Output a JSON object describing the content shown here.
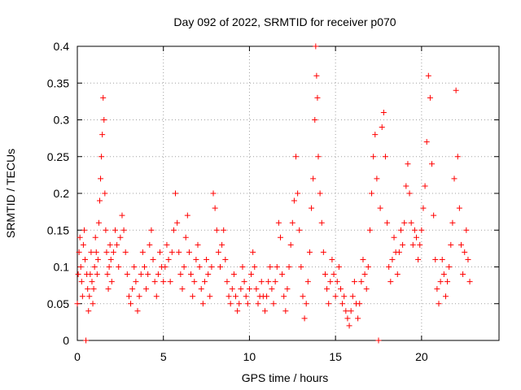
{
  "chart_data": {
    "type": "scatter",
    "title": "Day 092 of 2022, SRMTID for receiver p070",
    "xlabel": "GPS time / hours",
    "ylabel": "SRMTID / TECUs",
    "xlim": [
      0,
      24.5
    ],
    "ylim": [
      0,
      0.4
    ],
    "x_ticks": [
      0,
      5,
      10,
      15,
      20
    ],
    "y_ticks": [
      0,
      0.05,
      0.1,
      0.15,
      0.2,
      0.25,
      0.3,
      0.35,
      0.4
    ],
    "x_tick_labels": [
      "0",
      "5",
      "10",
      "15",
      "20"
    ],
    "y_tick_labels": [
      "0",
      "0.05",
      "0.1",
      "0.15",
      "0.2",
      "0.25",
      "0.3",
      "0.35",
      "0.4"
    ],
    "grid": true,
    "marker": "plus",
    "color": "#ff0000",
    "series": [
      {
        "name": "SRMTID",
        "points": [
          [
            0.0,
            0.05
          ],
          [
            0.05,
            0.09
          ],
          [
            0.1,
            0.12
          ],
          [
            0.15,
            0.14
          ],
          [
            0.2,
            0.1
          ],
          [
            0.25,
            0.08
          ],
          [
            0.3,
            0.06
          ],
          [
            0.35,
            0.13
          ],
          [
            0.4,
            0.15
          ],
          [
            0.45,
            0.11
          ],
          [
            0.5,
            0.0
          ],
          [
            0.55,
            0.09
          ],
          [
            0.6,
            0.07
          ],
          [
            0.65,
            0.04
          ],
          [
            0.7,
            0.06
          ],
          [
            0.75,
            0.09
          ],
          [
            0.8,
            0.12
          ],
          [
            0.85,
            0.08
          ],
          [
            0.9,
            0.05
          ],
          [
            0.95,
            0.07
          ],
          [
            1.0,
            0.1
          ],
          [
            1.05,
            0.14
          ],
          [
            1.1,
            0.12
          ],
          [
            1.15,
            0.09
          ],
          [
            1.2,
            0.11
          ],
          [
            1.25,
            0.16
          ],
          [
            1.3,
            0.19
          ],
          [
            1.35,
            0.22
          ],
          [
            1.4,
            0.25
          ],
          [
            1.45,
            0.28
          ],
          [
            1.5,
            0.33
          ],
          [
            1.55,
            0.3
          ],
          [
            1.6,
            0.2
          ],
          [
            1.65,
            0.15
          ],
          [
            1.7,
            0.12
          ],
          [
            1.75,
            0.09
          ],
          [
            1.8,
            0.07
          ],
          [
            1.85,
            0.1
          ],
          [
            1.9,
            0.13
          ],
          [
            1.95,
            0.11
          ],
          [
            2.0,
            0.08
          ],
          [
            2.1,
            0.12
          ],
          [
            2.2,
            0.15
          ],
          [
            2.3,
            0.13
          ],
          [
            2.4,
            0.1
          ],
          [
            2.5,
            0.14
          ],
          [
            2.6,
            0.17
          ],
          [
            2.7,
            0.15
          ],
          [
            2.8,
            0.12
          ],
          [
            2.9,
            0.09
          ],
          [
            3.0,
            0.06
          ],
          [
            3.1,
            0.05
          ],
          [
            3.2,
            0.07
          ],
          [
            3.3,
            0.1
          ],
          [
            3.4,
            0.08
          ],
          [
            3.5,
            0.04
          ],
          [
            3.6,
            0.06
          ],
          [
            3.7,
            0.09
          ],
          [
            3.8,
            0.12
          ],
          [
            3.9,
            0.1
          ],
          [
            4.0,
            0.07
          ],
          [
            4.1,
            0.09
          ],
          [
            4.2,
            0.13
          ],
          [
            4.3,
            0.15
          ],
          [
            4.4,
            0.11
          ],
          [
            4.5,
            0.08
          ],
          [
            4.6,
            0.06
          ],
          [
            4.7,
            0.09
          ],
          [
            4.8,
            0.12
          ],
          [
            4.9,
            0.1
          ],
          [
            5.0,
            0.08
          ],
          [
            5.1,
            0.1
          ],
          [
            5.2,
            0.13
          ],
          [
            5.3,
            0.11
          ],
          [
            5.4,
            0.08
          ],
          [
            5.5,
            0.12
          ],
          [
            5.6,
            0.15
          ],
          [
            5.7,
            0.2
          ],
          [
            5.8,
            0.16
          ],
          [
            5.9,
            0.12
          ],
          [
            6.0,
            0.09
          ],
          [
            6.1,
            0.07
          ],
          [
            6.2,
            0.1
          ],
          [
            6.3,
            0.14
          ],
          [
            6.4,
            0.17
          ],
          [
            6.5,
            0.12
          ],
          [
            6.6,
            0.09
          ],
          [
            6.7,
            0.06
          ],
          [
            6.8,
            0.08
          ],
          [
            6.9,
            0.11
          ],
          [
            7.0,
            0.13
          ],
          [
            7.1,
            0.1
          ],
          [
            7.2,
            0.07
          ],
          [
            7.3,
            0.05
          ],
          [
            7.4,
            0.08
          ],
          [
            7.5,
            0.11
          ],
          [
            7.6,
            0.09
          ],
          [
            7.7,
            0.06
          ],
          [
            7.8,
            0.1
          ],
          [
            7.9,
            0.2
          ],
          [
            8.0,
            0.18
          ],
          [
            8.1,
            0.15
          ],
          [
            8.2,
            0.12
          ],
          [
            8.3,
            0.1
          ],
          [
            8.4,
            0.13
          ],
          [
            8.5,
            0.15
          ],
          [
            8.6,
            0.11
          ],
          [
            8.7,
            0.08
          ],
          [
            8.8,
            0.06
          ],
          [
            8.9,
            0.05
          ],
          [
            9.0,
            0.07
          ],
          [
            9.1,
            0.09
          ],
          [
            9.2,
            0.06
          ],
          [
            9.3,
            0.04
          ],
          [
            9.4,
            0.05
          ],
          [
            9.5,
            0.07
          ],
          [
            9.6,
            0.1
          ],
          [
            9.7,
            0.08
          ],
          [
            9.8,
            0.06
          ],
          [
            9.9,
            0.05
          ],
          [
            10.0,
            0.07
          ],
          [
            10.1,
            0.09
          ],
          [
            10.2,
            0.12
          ],
          [
            10.3,
            0.1
          ],
          [
            10.4,
            0.07
          ],
          [
            10.5,
            0.05
          ],
          [
            10.6,
            0.06
          ],
          [
            10.7,
            0.08
          ],
          [
            10.8,
            0.06
          ],
          [
            10.9,
            0.04
          ],
          [
            11.0,
            0.06
          ],
          [
            11.1,
            0.08
          ],
          [
            11.2,
            0.1
          ],
          [
            11.3,
            0.07
          ],
          [
            11.4,
            0.05
          ],
          [
            11.5,
            0.08
          ],
          [
            11.6,
            0.1
          ],
          [
            11.7,
            0.16
          ],
          [
            11.8,
            0.14
          ],
          [
            11.9,
            0.09
          ],
          [
            12.0,
            0.06
          ],
          [
            12.1,
            0.04
          ],
          [
            12.2,
            0.07
          ],
          [
            12.3,
            0.1
          ],
          [
            12.4,
            0.13
          ],
          [
            12.5,
            0.16
          ],
          [
            12.6,
            0.19
          ],
          [
            12.7,
            0.25
          ],
          [
            12.8,
            0.2
          ],
          [
            12.9,
            0.15
          ],
          [
            13.0,
            0.1
          ],
          [
            13.1,
            0.06
          ],
          [
            13.2,
            0.03
          ],
          [
            13.3,
            0.05
          ],
          [
            13.4,
            0.08
          ],
          [
            13.5,
            0.12
          ],
          [
            13.6,
            0.18
          ],
          [
            13.7,
            0.22
          ],
          [
            13.8,
            0.3
          ],
          [
            13.85,
            0.4
          ],
          [
            13.9,
            0.36
          ],
          [
            13.95,
            0.33
          ],
          [
            14.0,
            0.25
          ],
          [
            14.1,
            0.2
          ],
          [
            14.2,
            0.16
          ],
          [
            14.3,
            0.12
          ],
          [
            14.4,
            0.09
          ],
          [
            14.5,
            0.07
          ],
          [
            14.6,
            0.05
          ],
          [
            14.7,
            0.08
          ],
          [
            14.8,
            0.11
          ],
          [
            14.9,
            0.09
          ],
          [
            15.0,
            0.06
          ],
          [
            15.1,
            0.08
          ],
          [
            15.2,
            0.1
          ],
          [
            15.3,
            0.07
          ],
          [
            15.4,
            0.05
          ],
          [
            15.5,
            0.06
          ],
          [
            15.6,
            0.04
          ],
          [
            15.7,
            0.03
          ],
          [
            15.8,
            0.02
          ],
          [
            15.9,
            0.04
          ],
          [
            16.0,
            0.06
          ],
          [
            16.1,
            0.08
          ],
          [
            16.2,
            0.05
          ],
          [
            16.3,
            0.03
          ],
          [
            16.4,
            0.05
          ],
          [
            16.5,
            0.08
          ],
          [
            16.6,
            0.11
          ],
          [
            16.7,
            0.09
          ],
          [
            16.8,
            0.07
          ],
          [
            16.9,
            0.1
          ],
          [
            17.0,
            0.15
          ],
          [
            17.1,
            0.2
          ],
          [
            17.2,
            0.25
          ],
          [
            17.3,
            0.28
          ],
          [
            17.4,
            0.22
          ],
          [
            17.5,
            0.0
          ],
          [
            17.6,
            0.18
          ],
          [
            17.7,
            0.29
          ],
          [
            17.8,
            0.31
          ],
          [
            17.9,
            0.25
          ],
          [
            18.0,
            0.16
          ],
          [
            18.1,
            0.1
          ],
          [
            18.2,
            0.08
          ],
          [
            18.3,
            0.11
          ],
          [
            18.4,
            0.14
          ],
          [
            18.5,
            0.12
          ],
          [
            18.6,
            0.09
          ],
          [
            18.7,
            0.12
          ],
          [
            18.8,
            0.15
          ],
          [
            18.9,
            0.13
          ],
          [
            19.0,
            0.16
          ],
          [
            19.1,
            0.21
          ],
          [
            19.2,
            0.24
          ],
          [
            19.3,
            0.2
          ],
          [
            19.4,
            0.16
          ],
          [
            19.5,
            0.13
          ],
          [
            19.6,
            0.15
          ],
          [
            19.7,
            0.14
          ],
          [
            19.8,
            0.11
          ],
          [
            19.9,
            0.13
          ],
          [
            20.0,
            0.15
          ],
          [
            20.1,
            0.18
          ],
          [
            20.2,
            0.21
          ],
          [
            20.3,
            0.27
          ],
          [
            20.4,
            0.36
          ],
          [
            20.5,
            0.33
          ],
          [
            20.6,
            0.24
          ],
          [
            20.7,
            0.17
          ],
          [
            20.8,
            0.11
          ],
          [
            20.9,
            0.07
          ],
          [
            21.0,
            0.05
          ],
          [
            21.1,
            0.08
          ],
          [
            21.2,
            0.11
          ],
          [
            21.3,
            0.09
          ],
          [
            21.4,
            0.06
          ],
          [
            21.5,
            0.08
          ],
          [
            21.6,
            0.1
          ],
          [
            21.7,
            0.13
          ],
          [
            21.8,
            0.16
          ],
          [
            21.9,
            0.22
          ],
          [
            22.0,
            0.34
          ],
          [
            22.1,
            0.25
          ],
          [
            22.2,
            0.18
          ],
          [
            22.3,
            0.13
          ],
          [
            22.4,
            0.09
          ],
          [
            22.5,
            0.12
          ],
          [
            22.6,
            0.15
          ],
          [
            22.7,
            0.11
          ],
          [
            22.8,
            0.08
          ]
        ]
      }
    ]
  }
}
